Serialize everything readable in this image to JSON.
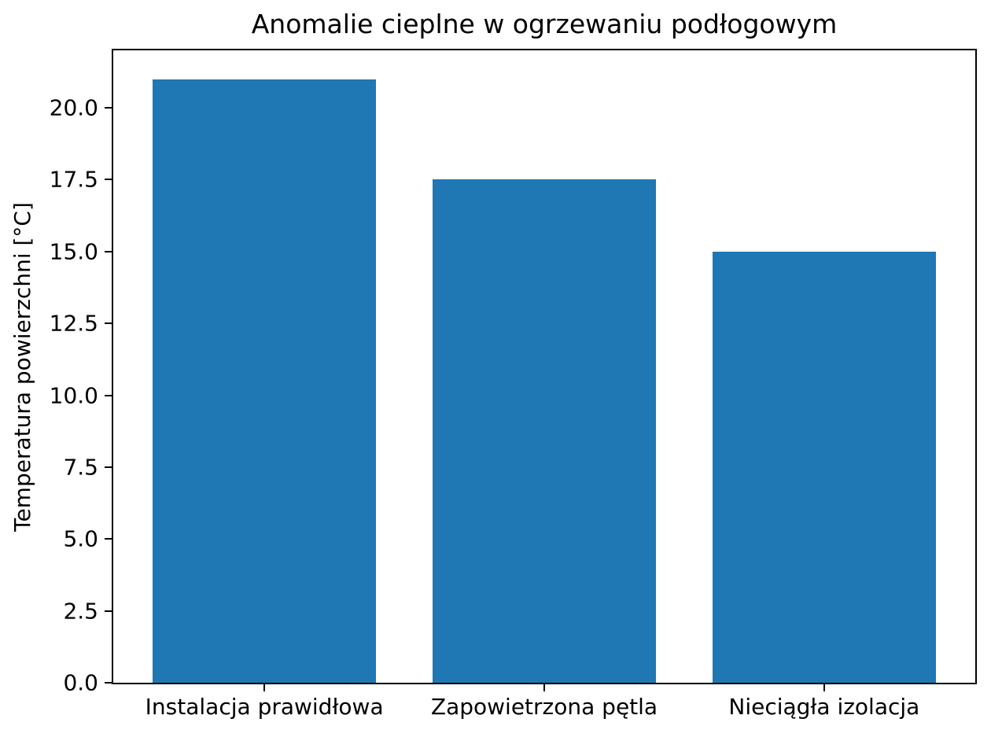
{
  "chart_data": {
    "type": "bar",
    "title": "Anomalie cieplne w ogrzewaniu podłogowym",
    "xlabel": "",
    "ylabel": "Temperatura powierzchni [°C]",
    "categories": [
      "Instalacja prawidłowa",
      "Zapowietrzona pętla",
      "Nieciągła izolacja"
    ],
    "values": [
      21.0,
      17.5,
      15.0
    ],
    "yticks": [
      0.0,
      2.5,
      5.0,
      7.5,
      10.0,
      12.5,
      15.0,
      17.5,
      20.0
    ],
    "ytick_labels": [
      "0.0",
      "2.5",
      "5.0",
      "7.5",
      "10.0",
      "12.5",
      "15.0",
      "17.5",
      "20.0"
    ],
    "ylim": [
      0,
      22
    ],
    "xlim": [
      -0.54,
      2.54
    ],
    "bar_width": 0.8,
    "bar_color": "#1f77b4",
    "spine_color": "#000000",
    "background_color": "#ffffff",
    "grid": false,
    "legend": null
  }
}
